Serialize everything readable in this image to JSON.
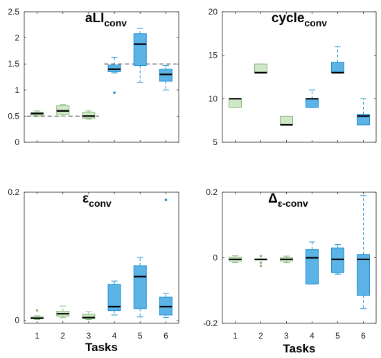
{
  "chart_data": [
    {
      "type": "box",
      "title": "aLI",
      "title_sub": "conv",
      "x_ticks": [
        "1",
        "2",
        "3",
        "4",
        "5",
        "6"
      ],
      "y_ticks": [
        "0",
        "0.5",
        "1",
        "1.5",
        "2",
        "2.5"
      ],
      "ylim": [
        0,
        2.5
      ],
      "xlabel": "",
      "reference_lines": [
        {
          "from_task": 0.6,
          "to_task": 3.4,
          "value": 0.5
        },
        {
          "from_task": 3.6,
          "to_task": 6.4,
          "value": 1.5
        }
      ],
      "boxes": [
        {
          "task": 1,
          "whisker_low": 0.49,
          "q1": 0.52,
          "median": 0.55,
          "q3": 0.57,
          "whisker_high": 0.6,
          "outliers": []
        },
        {
          "task": 2,
          "whisker_low": 0.5,
          "q1": 0.53,
          "median": 0.6,
          "q3": 0.7,
          "whisker_high": 0.72,
          "outliers": []
        },
        {
          "task": 3,
          "whisker_low": 0.44,
          "q1": 0.46,
          "median": 0.5,
          "q3": 0.57,
          "whisker_high": 0.6,
          "outliers": []
        },
        {
          "task": 4,
          "whisker_low": 1.33,
          "q1": 1.35,
          "median": 1.4,
          "q3": 1.48,
          "whisker_high": 1.63,
          "outliers": [
            0.95
          ]
        },
        {
          "task": 5,
          "whisker_low": 1.15,
          "q1": 1.47,
          "median": 1.88,
          "q3": 2.08,
          "whisker_high": 2.18,
          "outliers": []
        },
        {
          "task": 6,
          "whisker_low": 1.0,
          "q1": 1.17,
          "median": 1.3,
          "q3": 1.4,
          "whisker_high": 1.47,
          "outliers": []
        }
      ]
    },
    {
      "type": "box",
      "title": "cycle",
      "title_sub": "conv",
      "x_ticks": [
        "1",
        "2",
        "3",
        "4",
        "5",
        "6"
      ],
      "y_ticks": [
        "5",
        "10",
        "15",
        "20"
      ],
      "ylim": [
        5,
        20
      ],
      "xlabel": "",
      "reference_lines": [],
      "boxes": [
        {
          "task": 1,
          "whisker_low": 9,
          "q1": 9,
          "median": 10,
          "q3": 10,
          "whisker_high": 10,
          "outliers": []
        },
        {
          "task": 2,
          "whisker_low": 13,
          "q1": 13,
          "median": 13,
          "q3": 14,
          "whisker_high": 14,
          "outliers": []
        },
        {
          "task": 3,
          "whisker_low": 7,
          "q1": 7,
          "median": 7,
          "q3": 8,
          "whisker_high": 8,
          "outliers": []
        },
        {
          "task": 4,
          "whisker_low": 9,
          "q1": 9,
          "median": 10,
          "q3": 10,
          "whisker_high": 11,
          "outliers": []
        },
        {
          "task": 5,
          "whisker_low": 13,
          "q1": 13,
          "median": 13,
          "q3": 14.2,
          "whisker_high": 16,
          "outliers": []
        },
        {
          "task": 6,
          "whisker_low": 7,
          "q1": 7,
          "median": 8,
          "q3": 8.2,
          "whisker_high": 10,
          "outliers": []
        }
      ]
    },
    {
      "type": "box",
      "title": "ε",
      "title_sub": "conv",
      "x_ticks": [
        "1",
        "2",
        "3",
        "4",
        "5",
        "6"
      ],
      "y_ticks": [
        "0",
        "0.2"
      ],
      "ylim": [
        -0.005,
        0.2
      ],
      "xlabel": "Tasks",
      "reference_lines": [],
      "boxes": [
        {
          "task": 1,
          "whisker_low": 0.001,
          "q1": 0.002,
          "median": 0.003,
          "q3": 0.005,
          "whisker_high": 0.007,
          "outliers": [
            0.015
          ]
        },
        {
          "task": 2,
          "whisker_low": 0.004,
          "q1": 0.006,
          "median": 0.01,
          "q3": 0.014,
          "whisker_high": 0.022,
          "outliers": []
        },
        {
          "task": 3,
          "whisker_low": 0.001,
          "q1": 0.002,
          "median": 0.004,
          "q3": 0.009,
          "whisker_high": 0.013,
          "outliers": []
        },
        {
          "task": 4,
          "whisker_low": 0.008,
          "q1": 0.015,
          "median": 0.021,
          "q3": 0.056,
          "whisker_high": 0.061,
          "outliers": []
        },
        {
          "task": 5,
          "whisker_low": 0.005,
          "q1": 0.018,
          "median": 0.068,
          "q3": 0.085,
          "whisker_high": 0.098,
          "outliers": []
        },
        {
          "task": 6,
          "whisker_low": 0.004,
          "q1": 0.008,
          "median": 0.021,
          "q3": 0.036,
          "whisker_high": 0.042,
          "outliers": [
            0.188
          ]
        }
      ]
    },
    {
      "type": "box",
      "title": "Δ",
      "title_sub": "ε-conv",
      "x_ticks": [
        "1",
        "2",
        "3",
        "4",
        "5",
        "6"
      ],
      "y_ticks": [
        "-0.2",
        "0",
        "0.2"
      ],
      "ylim": [
        -0.2,
        0.2
      ],
      "xlabel": "Tasks",
      "reference_lines": [],
      "boxes": [
        {
          "task": 1,
          "whisker_low": -0.015,
          "q1": -0.01,
          "median": -0.005,
          "q3": 0.002,
          "whisker_high": 0.006,
          "outliers": []
        },
        {
          "task": 2,
          "whisker_low": -0.005,
          "q1": -0.005,
          "median": -0.005,
          "q3": -0.005,
          "whisker_high": -0.005,
          "outliers": [
            -0.025,
            -0.015,
            0.005
          ]
        },
        {
          "task": 3,
          "whisker_low": -0.015,
          "q1": -0.01,
          "median": -0.005,
          "q3": 0.0,
          "whisker_high": 0.005,
          "outliers": []
        },
        {
          "task": 4,
          "whisker_low": -0.08,
          "q1": -0.08,
          "median": 0.0,
          "q3": 0.025,
          "whisker_high": 0.048,
          "outliers": []
        },
        {
          "task": 5,
          "whisker_low": -0.05,
          "q1": -0.045,
          "median": -0.005,
          "q3": 0.03,
          "whisker_high": 0.04,
          "outliers": []
        },
        {
          "task": 6,
          "whisker_low": -0.155,
          "q1": -0.115,
          "median": -0.005,
          "q3": 0.01,
          "whisker_high": 0.19,
          "outliers": []
        }
      ]
    }
  ],
  "colors": {
    "green_fill": "#cfe8c7",
    "green_edge": "#86b97a",
    "blue_fill": "#5bb3e6",
    "blue_edge": "#1f8fd1",
    "median": "#000000",
    "axis": "#222222",
    "reference": "#555555"
  }
}
